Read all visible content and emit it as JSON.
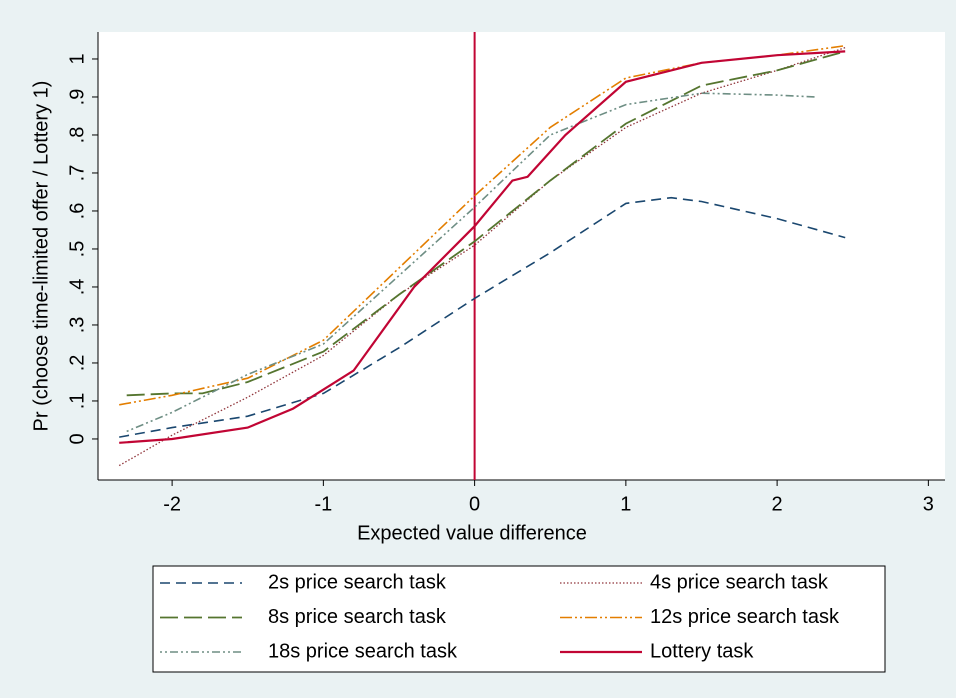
{
  "chart_data": {
    "type": "line",
    "x_label": "Expected value difference",
    "y_label": "Pr (choose time-limited offer / Lottery 1)",
    "xlim": [
      -2.49,
      3.11
    ],
    "ylim": [
      -0.108,
      1.071
    ],
    "xticks": [
      -2,
      -1,
      0,
      1,
      2,
      3
    ],
    "yticks": [
      0,
      {
        "value": 0.1,
        "label": ".1"
      },
      {
        "value": 0.2,
        "label": ".2"
      },
      {
        "value": 0.3,
        "label": ".3"
      },
      {
        "value": 0.4,
        "label": ".4"
      },
      {
        "value": 0.5,
        "label": ".5"
      },
      {
        "value": 0.6,
        "label": ".6"
      },
      {
        "value": 0.7,
        "label": ".7"
      },
      {
        "value": 0.8,
        "label": ".8"
      },
      {
        "value": 0.9,
        "label": ".9"
      },
      1
    ],
    "grid": false,
    "xline": {
      "value": 0,
      "color": "#c10534"
    },
    "series": [
      {
        "name": "2s price search task",
        "color": "#1a476f",
        "dash": "10,6",
        "width": 1.6,
        "x": [
          -2.35,
          -2,
          -1.5,
          -1,
          -0.5,
          0,
          0.5,
          1,
          1.3,
          1.5,
          2,
          2.45
        ],
        "values": [
          0.005,
          0.03,
          0.06,
          0.12,
          0.24,
          0.37,
          0.49,
          0.62,
          0.635,
          0.625,
          0.58,
          0.53
        ]
      },
      {
        "name": "4s price search task",
        "color": "#90353b",
        "dash": "1.5,2",
        "width": 1.3,
        "x": [
          -2.35,
          -2,
          -1.5,
          -1,
          -0.5,
          0,
          0.5,
          1,
          1.5,
          2,
          2.45
        ],
        "values": [
          -0.07,
          0.01,
          0.11,
          0.22,
          0.38,
          0.51,
          0.68,
          0.82,
          0.91,
          0.97,
          1.03
        ]
      },
      {
        "name": "8s price search task",
        "color": "#55752f",
        "dash": "18,6",
        "width": 1.8,
        "x": [
          -2.3,
          -2,
          -1.8,
          -1.5,
          -1,
          -0.5,
          0,
          0.5,
          1,
          1.5,
          2,
          2.45
        ],
        "values": [
          0.115,
          0.12,
          0.12,
          0.15,
          0.23,
          0.38,
          0.52,
          0.68,
          0.83,
          0.93,
          0.97,
          1.02
        ]
      },
      {
        "name": "12s price search task",
        "color": "#e37e00",
        "dash": "12,3,2,3,2,3",
        "width": 1.6,
        "x": [
          -2.35,
          -2,
          -1.5,
          -1,
          -0.5,
          0,
          0.5,
          1,
          1.5,
          2,
          2.45
        ],
        "values": [
          0.09,
          0.115,
          0.16,
          0.26,
          0.45,
          0.64,
          0.82,
          0.95,
          0.99,
          1.01,
          1.035
        ]
      },
      {
        "name": "18s price search task",
        "color": "#6e8e84",
        "dash": "2,3,2,3,8,3",
        "width": 1.6,
        "x": [
          -2.3,
          -2,
          -1.5,
          -1,
          -0.5,
          0,
          0.5,
          1,
          1.5,
          2,
          2.25
        ],
        "values": [
          0.02,
          0.07,
          0.17,
          0.25,
          0.43,
          0.61,
          0.8,
          0.88,
          0.91,
          0.905,
          0.9
        ]
      },
      {
        "name": "Lottery task",
        "color": "#c10534",
        "dash": "",
        "width": 2.2,
        "x": [
          -2.35,
          -2,
          -1.5,
          -1.2,
          -0.8,
          -0.4,
          0,
          0.25,
          0.35,
          0.6,
          1,
          1.5,
          2,
          2.45
        ],
        "values": [
          -0.01,
          0,
          0.03,
          0.08,
          0.18,
          0.4,
          0.56,
          0.68,
          0.69,
          0.8,
          0.94,
          0.99,
          1.01,
          1.02
        ]
      }
    ]
  }
}
